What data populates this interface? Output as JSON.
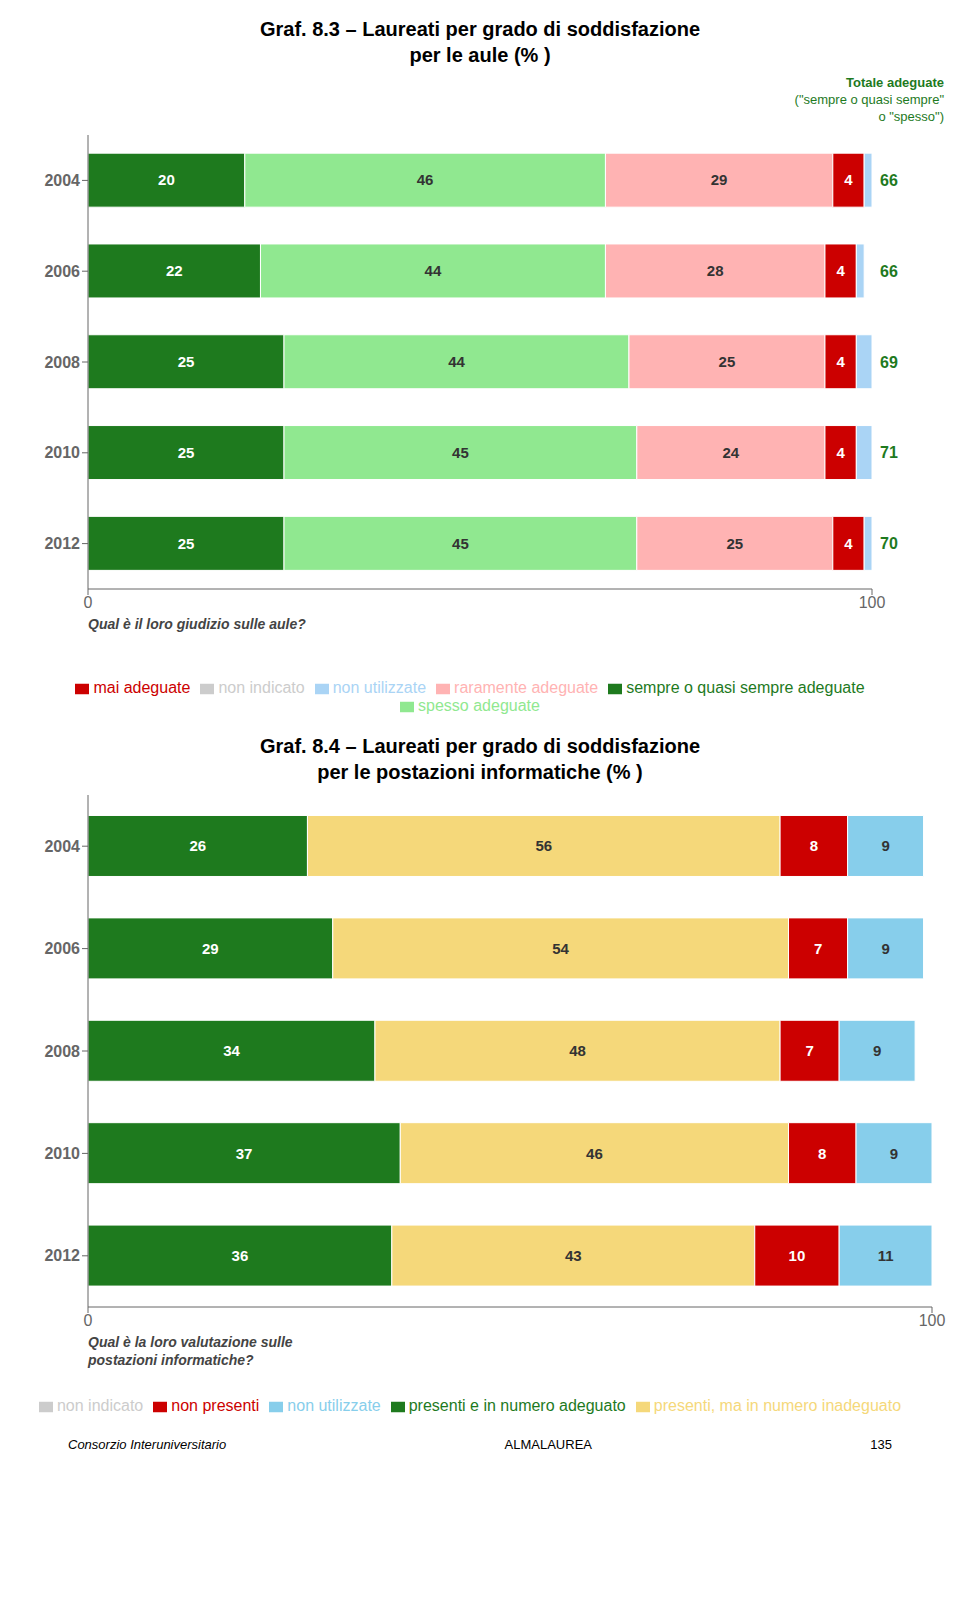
{
  "chart_data": [
    {
      "type": "bar",
      "orientation": "horizontal",
      "stacked": true,
      "data_labels": true,
      "grid": false,
      "legend": "bottom",
      "title": "Graf. 8.3 – Laureati per grado di soddisfazione\nper le aule (% )",
      "x_label": "Qual è il loro giudizio sulle aule?",
      "categories": [
        "2004",
        "2006",
        "2008",
        "2010",
        "2012"
      ],
      "xlim": [
        0,
        100
      ],
      "xticks": [
        0,
        100
      ],
      "series": [
        {
          "name": "sempre o quasi sempre adeguate",
          "color": "#1e7a1e",
          "values": [
            20,
            22,
            25,
            25,
            25
          ]
        },
        {
          "name": "spesso adeguate",
          "color": "#90e890",
          "values": [
            46,
            44,
            44,
            45,
            45
          ]
        },
        {
          "name": "raramente adeguate",
          "color": "#ffb3b3",
          "values": [
            29,
            28,
            25,
            24,
            25
          ]
        },
        {
          "name": "mai adeguate",
          "color": "#cc0000",
          "values": [
            4,
            4,
            4,
            4,
            4
          ]
        },
        {
          "name": "non utilizzate",
          "color": "#aad4f5",
          "values": [
            1,
            1,
            2,
            2,
            1
          ],
          "data_labels": false
        },
        {
          "name": "non indicato",
          "color": "#cccccc",
          "values": [
            null,
            null,
            null,
            null,
            null
          ]
        }
      ],
      "totals": {
        "title": [
          "Totale adeguate",
          "(\"sempre o quasi sempre\"",
          "o \"spesso\")"
        ],
        "values": [
          66,
          66,
          69,
          71,
          70
        ],
        "color": "#1e7a1e"
      }
    },
    {
      "type": "bar",
      "orientation": "horizontal",
      "stacked": true,
      "data_labels": true,
      "grid": false,
      "legend": "bottom",
      "title": "Graf. 8.4 – Laureati per grado di soddisfazione\nper le postazioni informatiche (% )",
      "x_label": "Qual è la loro valutazione sulle\npostazioni informatiche?",
      "categories": [
        "2004",
        "2006",
        "2008",
        "2010",
        "2012"
      ],
      "xlim": [
        0,
        100
      ],
      "xticks": [
        0,
        100
      ],
      "series": [
        {
          "name": "presenti e in numero adeguato",
          "color": "#1e7a1e",
          "values": [
            26,
            29,
            34,
            37,
            36
          ]
        },
        {
          "name": "presenti, ma in numero inadeguato",
          "color": "#f5d87a",
          "values": [
            56,
            54,
            48,
            46,
            43
          ]
        },
        {
          "name": "non presenti",
          "color": "#cc0000",
          "values": [
            8,
            7,
            7,
            8,
            10
          ]
        },
        {
          "name": "non utilizzate",
          "color": "#87ceeb",
          "values": [
            9,
            9,
            9,
            9,
            11
          ]
        },
        {
          "name": "non indicato",
          "color": "#cccccc",
          "values": [
            null,
            null,
            null,
            null,
            null
          ]
        }
      ]
    }
  ],
  "footer": [
    "Consorzio Interuniversitario",
    "ALMALAUREA",
    "135"
  ]
}
